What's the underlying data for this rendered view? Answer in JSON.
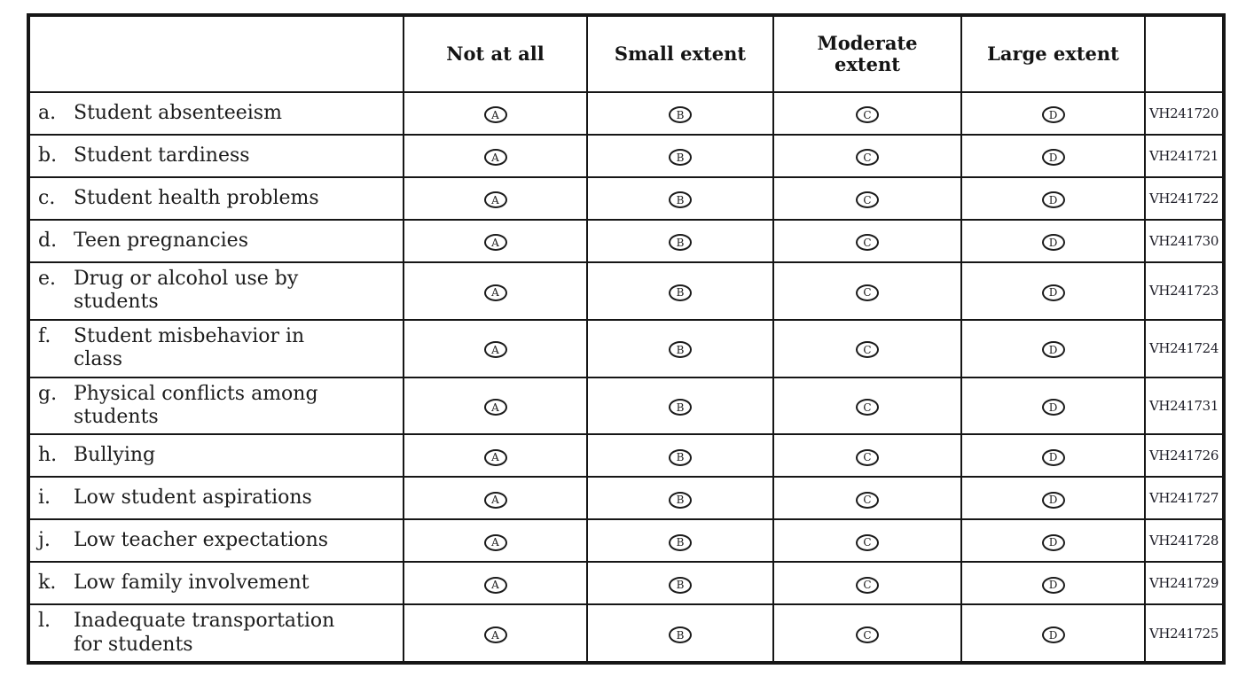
{
  "table": {
    "headers": [
      "Not at all",
      "Small extent",
      "Moderate\nextent",
      "Large extent"
    ],
    "option_letters": [
      "A",
      "B",
      "C",
      "D"
    ],
    "rows": [
      {
        "letter": "a.",
        "label": "Student absenteeism",
        "code": "VH241720"
      },
      {
        "letter": "b.",
        "label": "Student tardiness",
        "code": "VH241721"
      },
      {
        "letter": "c.",
        "label": "Student health problems",
        "code": "VH241722"
      },
      {
        "letter": "d.",
        "label": "Teen pregnancies",
        "code": "VH241730"
      },
      {
        "letter": "e.",
        "label": "Drug or alcohol use by\nstudents",
        "code": "VH241723"
      },
      {
        "letter": "f.",
        "label": "Student misbehavior in\nclass",
        "code": "VH241724"
      },
      {
        "letter": "g.",
        "label": "Physical conflicts among\nstudents",
        "code": "VH241731"
      },
      {
        "letter": "h.",
        "label": "Bullying",
        "code": "VH241726"
      },
      {
        "letter": "i.",
        "label": "Low student aspirations",
        "code": "VH241727"
      },
      {
        "letter": "j.",
        "label": "Low teacher expectations",
        "code": "VH241728"
      },
      {
        "letter": "k.",
        "label": "Low family involvement",
        "code": "VH241729"
      },
      {
        "letter": "l.",
        "label": "Inadequate transportation\nfor students",
        "code": "VH241725"
      }
    ],
    "colors": {
      "border": "#161616",
      "text": "#1c1c1c",
      "background": "#ffffff"
    }
  }
}
